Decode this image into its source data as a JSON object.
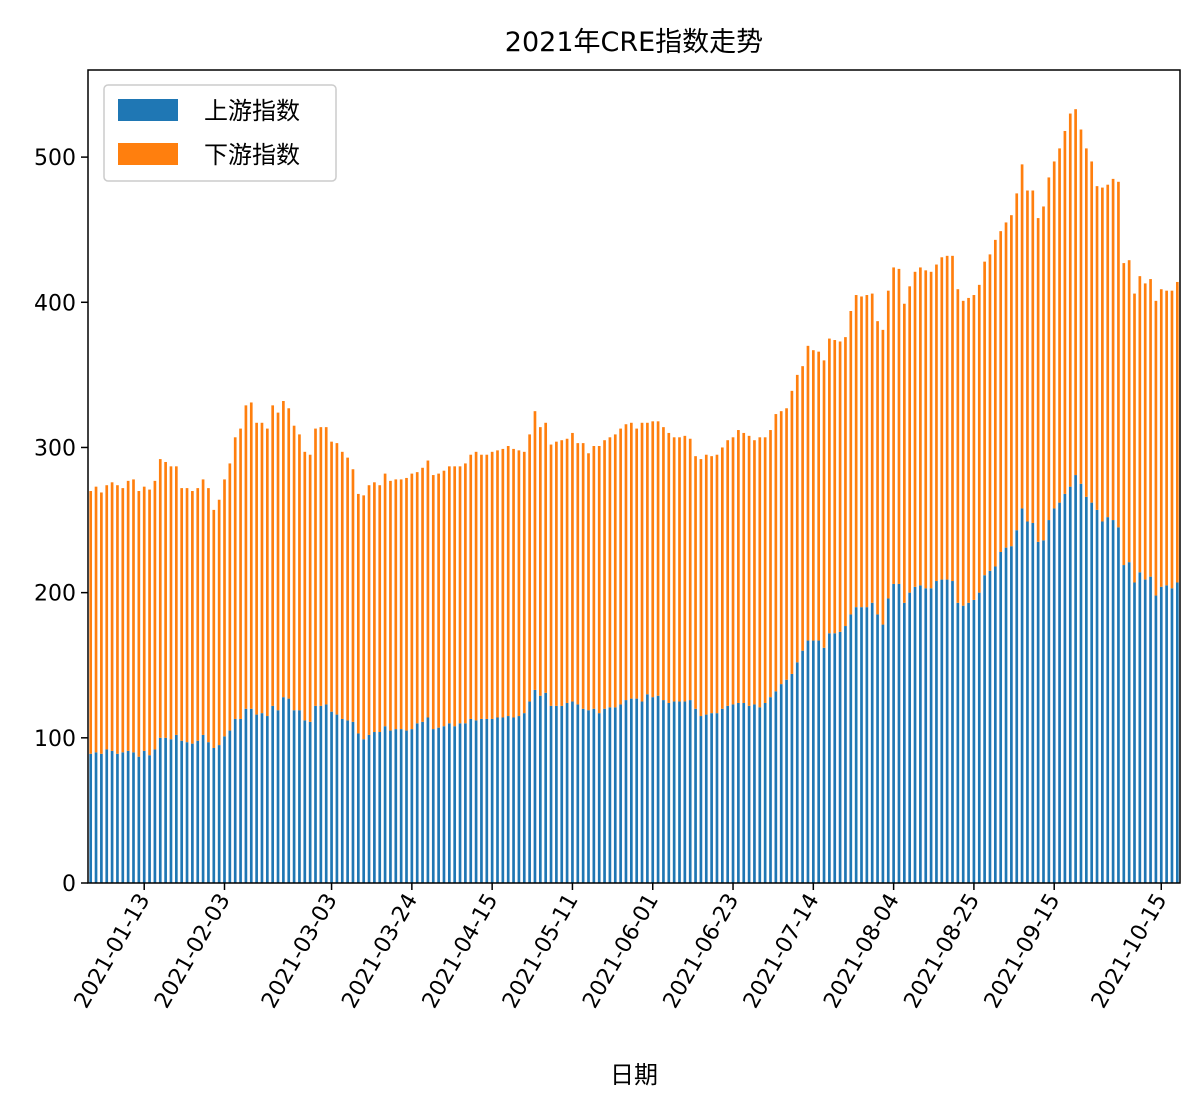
{
  "chart_data": {
    "type": "bar",
    "stacked": true,
    "title": "2021年CRE指数走势",
    "xlabel": "日期",
    "ylabel": "",
    "ylim": [
      0,
      560
    ],
    "yticks": [
      0,
      100,
      200,
      300,
      400,
      500
    ],
    "xtick_labels": [
      "2021-01-13",
      "2021-02-03",
      "2021-03-03",
      "2021-03-24",
      "2021-04-15",
      "2021-05-11",
      "2021-06-01",
      "2021-06-23",
      "2021-07-14",
      "2021-08-04",
      "2021-08-25",
      "2021-09-15",
      "2021-10-15"
    ],
    "xtick_indices": [
      10,
      25,
      45,
      60,
      75,
      90,
      105,
      120,
      135,
      150,
      165,
      180,
      200
    ],
    "grid": false,
    "legend_position": "top-left",
    "colors": {
      "upstream": "#1f77b4",
      "downstream": "#ff7f0e"
    },
    "series": [
      {
        "name": "上游指数",
        "values": [
          89,
          90,
          89,
          92,
          91,
          89,
          90,
          91,
          90,
          87,
          91,
          88,
          92,
          100,
          100,
          99,
          102,
          98,
          97,
          96,
          98,
          102,
          97,
          93,
          95,
          101,
          105,
          113,
          113,
          120,
          120,
          116,
          117,
          115,
          122,
          119,
          128,
          127,
          119,
          119,
          112,
          111,
          122,
          122,
          123,
          118,
          116,
          113,
          112,
          111,
          103,
          99,
          102,
          104,
          104,
          108,
          105,
          106,
          106,
          105,
          106,
          110,
          111,
          114,
          106,
          107,
          108,
          110,
          108,
          110,
          110,
          113,
          112,
          113,
          113,
          113,
          114,
          114,
          115,
          114,
          115,
          117,
          125,
          133,
          129,
          131,
          122,
          122,
          122,
          124,
          125,
          123,
          120,
          119,
          120,
          117,
          120,
          121,
          121,
          123,
          126,
          127,
          127,
          125,
          130,
          128,
          129,
          126,
          124,
          125,
          125,
          125,
          126,
          120,
          115,
          116,
          117,
          117,
          120,
          122,
          123,
          124,
          124,
          122,
          123,
          121,
          124,
          128,
          132,
          137,
          140,
          144,
          152,
          160,
          167,
          167,
          167,
          162,
          172,
          172,
          173,
          177,
          185,
          190,
          190,
          190,
          193,
          185,
          178,
          196,
          206,
          206,
          193,
          200,
          204,
          205,
          203,
          203,
          208,
          209,
          209,
          208,
          193,
          191,
          193,
          195,
          200,
          212,
          215,
          218,
          228,
          231,
          232,
          243,
          258,
          249,
          248,
          235,
          236,
          250,
          258,
          262,
          268,
          273,
          281,
          275,
          266,
          262,
          257,
          249,
          252,
          250,
          245,
          219,
          221,
          207,
          214,
          209,
          211,
          198,
          204,
          205,
          203,
          207
        ]
      },
      {
        "name": "下游指数",
        "values": [
          181,
          183,
          180,
          182,
          185,
          185,
          182,
          186,
          188,
          183,
          182,
          183,
          185,
          192,
          190,
          188,
          185,
          174,
          175,
          174,
          174,
          176,
          175,
          164,
          169,
          177,
          184,
          194,
          200,
          209,
          211,
          201,
          200,
          198,
          207,
          205,
          204,
          200,
          196,
          190,
          185,
          184,
          191,
          192,
          191,
          186,
          187,
          184,
          181,
          174,
          165,
          168,
          172,
          172,
          170,
          174,
          172,
          172,
          172,
          174,
          176,
          173,
          175,
          177,
          175,
          175,
          176,
          177,
          179,
          177,
          179,
          182,
          185,
          182,
          182,
          184,
          184,
          185,
          186,
          185,
          183,
          180,
          184,
          192,
          185,
          186,
          180,
          182,
          183,
          182,
          185,
          180,
          183,
          177,
          181,
          184,
          185,
          186,
          188,
          190,
          190,
          190,
          186,
          192,
          187,
          190,
          189,
          188,
          186,
          182,
          182,
          183,
          180,
          174,
          177,
          179,
          177,
          178,
          180,
          183,
          184,
          188,
          186,
          186,
          182,
          186,
          183,
          184,
          191,
          188,
          187,
          195,
          198,
          196,
          203,
          200,
          199,
          198,
          203,
          202,
          200,
          199,
          209,
          215,
          214,
          215,
          213,
          202,
          203,
          212,
          218,
          217,
          206,
          211,
          217,
          219,
          219,
          218,
          218,
          222,
          223,
          224,
          216,
          210,
          210,
          210,
          212,
          216,
          218,
          225,
          221,
          224,
          228,
          232,
          237,
          228,
          229,
          223,
          230,
          236,
          239,
          244,
          250,
          257,
          252,
          244,
          240,
          235,
          223,
          230,
          229,
          235,
          238,
          208,
          208,
          199,
          204,
          204,
          205,
          203,
          205,
          203,
          205,
          207
        ]
      }
    ]
  }
}
